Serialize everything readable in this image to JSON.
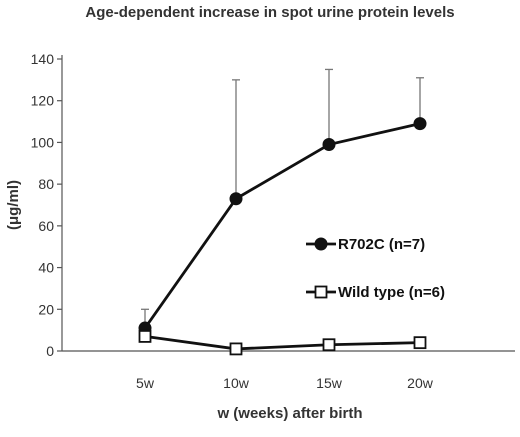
{
  "chart_data": {
    "type": "line",
    "title": "Age-dependent increase in spot urine protein levels",
    "xlabel": "w (weeks) after birth",
    "ylabel": "(μg/ml)",
    "categories": [
      "5w",
      "10w",
      "15w",
      "20w"
    ],
    "ylim": [
      0,
      140
    ],
    "yticks": [
      0,
      20,
      40,
      60,
      80,
      100,
      120,
      140
    ],
    "grid": false,
    "legend_position": "right",
    "series": [
      {
        "name": "R702C (n=7)",
        "marker": "filled-circle",
        "color": "#111111",
        "values": [
          11,
          73,
          99,
          109
        ],
        "error_upper": [
          9,
          57,
          36,
          22
        ]
      },
      {
        "name": "Wild type (n=6)",
        "marker": "open-square",
        "color": "#111111",
        "values": [
          7,
          1,
          3,
          4
        ],
        "error_upper": [
          0,
          0,
          2,
          1
        ]
      }
    ]
  }
}
